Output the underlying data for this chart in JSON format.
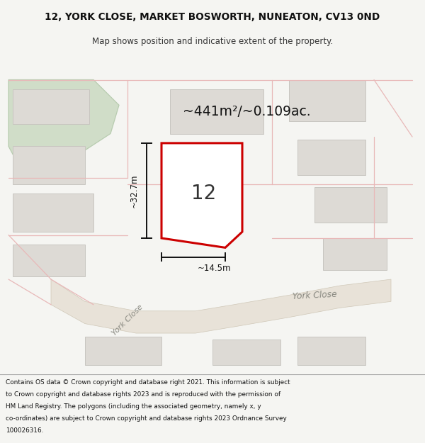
{
  "title_line1": "12, YORK CLOSE, MARKET BOSWORTH, NUNEATON, CV13 0ND",
  "title_line2": "Map shows position and indicative extent of the property.",
  "area_text": "~441m²/~0.109ac.",
  "house_number": "12",
  "dim_height": "~32.7m",
  "dim_width": "~14.5m",
  "road_name_flat": "York Close",
  "road_name_diag": "York Close",
  "footer_lines": [
    "Contains OS data © Crown copyright and database right 2021. This information is subject",
    "to Crown copyright and database rights 2023 and is reproduced with the permission of",
    "HM Land Registry. The polygons (including the associated geometry, namely x, y",
    "co-ordinates) are subject to Crown copyright and database rights 2023 Ordnance Survey",
    "100026316."
  ],
  "bg_color": "#f5f5f2",
  "map_bg": "#eeebe4",
  "road_fill": "#e8e2d8",
  "road_edge": "#d0c8b8",
  "building_fill": "#dddad5",
  "building_edge": "#c8c5c0",
  "highlight_fill": "#ffffff",
  "highlight_stroke": "#cc0000",
  "green_fill": "#d0ddc8",
  "green_stroke": "#b8ccb0",
  "dim_color": "#111111",
  "footer_bg": "#ffffff",
  "bnd_color": "#e8b8b8",
  "road_text_color": "#888880",
  "title_color": "#111111",
  "subtitle_color": "#333333"
}
